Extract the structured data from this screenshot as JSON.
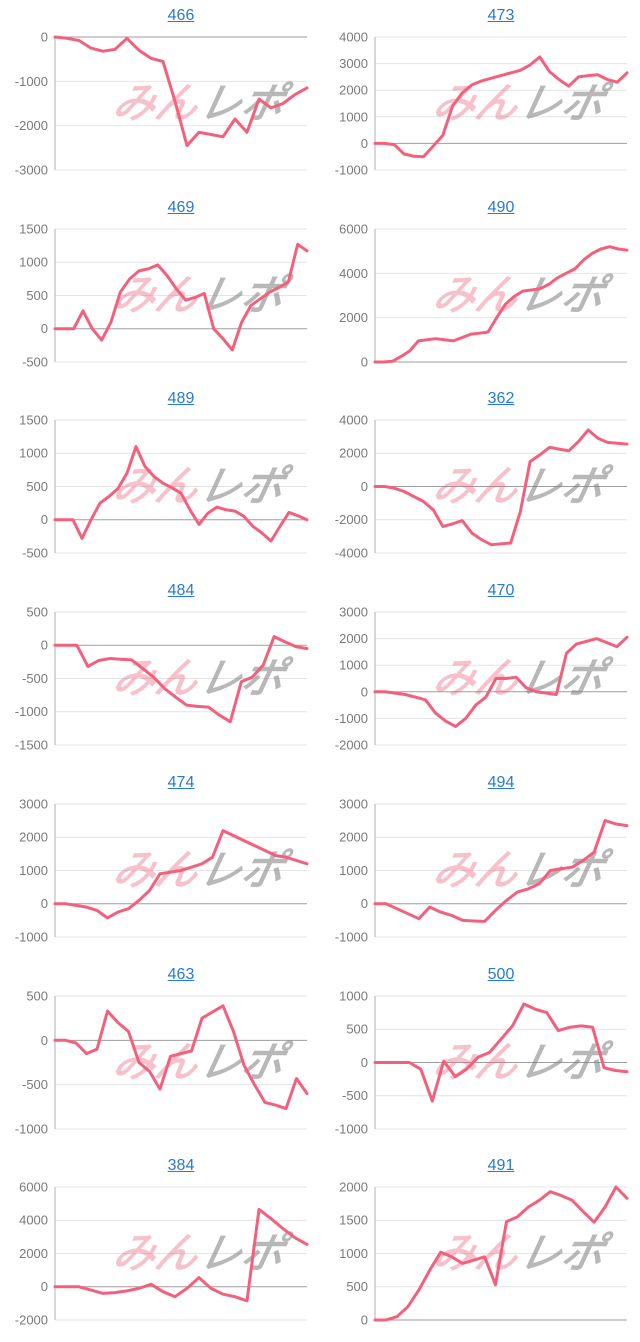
{
  "watermark": {
    "pink_text": "みん",
    "gray_text": "レポ"
  },
  "colors": {
    "line": "#f4607c",
    "title_link": "#2779d8",
    "grid_line": "#e4e4e4",
    "zero_line": "#9e9e9e",
    "axis_line": "#b0b0b0",
    "tick_label": "#7a7a7a",
    "watermark_pink": "rgba(233,100,125,0.40)",
    "watermark_gray": "rgba(125,125,125,0.55)"
  },
  "chart_data": [
    {
      "type": "line",
      "title": "466",
      "ylim": [
        -3000,
        0
      ],
      "ytick_step": 1000,
      "values": [
        0,
        -30,
        -80,
        -250,
        -320,
        -280,
        -30,
        -300,
        -480,
        -550,
        -1450,
        -2450,
        -2150,
        -2200,
        -2250,
        -1850,
        -2150,
        -1400,
        -1600,
        -1500,
        -1300,
        -1150
      ]
    },
    {
      "type": "line",
      "title": "473",
      "ylim": [
        -1000,
        4000
      ],
      "ytick_step": 1000,
      "values": [
        0,
        0,
        -50,
        -400,
        -480,
        -500,
        -100,
        300,
        1400,
        1900,
        2200,
        2350,
        2450,
        2550,
        2650,
        2750,
        2950,
        3250,
        2700,
        2400,
        2150,
        2500,
        2550,
        2580,
        2400,
        2300,
        2650
      ]
    },
    {
      "type": "line",
      "title": "469",
      "ylim": [
        -500,
        1500
      ],
      "ytick_step": 500,
      "values": [
        0,
        0,
        0,
        270,
        0,
        -170,
        100,
        550,
        750,
        870,
        900,
        960,
        800,
        600,
        430,
        470,
        530,
        0,
        -150,
        -320,
        100,
        350,
        450,
        550,
        620,
        700,
        1270,
        1170
      ]
    },
    {
      "type": "line",
      "title": "490",
      "ylim": [
        0,
        6000
      ],
      "ytick_step": 2000,
      "values": [
        0,
        0,
        30,
        250,
        500,
        950,
        1000,
        1050,
        1000,
        950,
        1100,
        1250,
        1300,
        1350,
        2000,
        2600,
        2950,
        3200,
        3250,
        3300,
        3500,
        3800,
        4000,
        4200,
        4600,
        4900,
        5100,
        5200,
        5100,
        5050
      ]
    },
    {
      "type": "line",
      "title": "489",
      "ylim": [
        -500,
        1500
      ],
      "ytick_step": 500,
      "values": [
        0,
        0,
        0,
        -280,
        0,
        250,
        350,
        470,
        700,
        1100,
        800,
        650,
        550,
        480,
        400,
        150,
        -70,
        100,
        190,
        150,
        130,
        50,
        -100,
        -200,
        -320,
        -100,
        110,
        60,
        0
      ]
    },
    {
      "type": "line",
      "title": "362",
      "ylim": [
        -4000,
        4000
      ],
      "ytick_step": 2000,
      "values": [
        0,
        0,
        -100,
        -300,
        -600,
        -900,
        -1400,
        -2400,
        -2250,
        -2050,
        -2800,
        -3200,
        -3500,
        -3450,
        -3400,
        -1500,
        1500,
        1900,
        2350,
        2250,
        2150,
        2700,
        3400,
        2900,
        2650,
        2600,
        2550
      ]
    },
    {
      "type": "line",
      "title": "484",
      "ylim": [
        -1500,
        500
      ],
      "ytick_step": 500,
      "values": [
        0,
        0,
        0,
        -320,
        -230,
        -200,
        -210,
        -220,
        -350,
        -480,
        -650,
        -780,
        -900,
        -920,
        -930,
        -1050,
        -1150,
        -550,
        -480,
        -300,
        130,
        50,
        -20,
        -50
      ]
    },
    {
      "type": "line",
      "title": "470",
      "ylim": [
        -2000,
        3000
      ],
      "ytick_step": 1000,
      "values": [
        0,
        0,
        -50,
        -100,
        -200,
        -300,
        -800,
        -1100,
        -1300,
        -1000,
        -500,
        -200,
        500,
        500,
        550,
        150,
        0,
        -50,
        -100,
        1450,
        1800,
        1900,
        2000,
        1850,
        1700,
        2050
      ]
    },
    {
      "type": "line",
      "title": "474",
      "ylim": [
        -1000,
        3000
      ],
      "ytick_step": 1000,
      "values": [
        0,
        0,
        -50,
        -100,
        -200,
        -430,
        -250,
        -150,
        100,
        400,
        900,
        950,
        1000,
        1100,
        1200,
        1400,
        2200,
        2050,
        1900,
        1750,
        1600,
        1450,
        1400,
        1300,
        1200
      ]
    },
    {
      "type": "line",
      "title": "494",
      "ylim": [
        -1000,
        3000
      ],
      "ytick_step": 1000,
      "values": [
        0,
        0,
        -150,
        -300,
        -450,
        -100,
        -250,
        -350,
        -500,
        -520,
        -530,
        -200,
        100,
        350,
        450,
        600,
        1000,
        1050,
        1100,
        1300,
        1550,
        2500,
        2400,
        2350
      ]
    },
    {
      "type": "line",
      "title": "463",
      "ylim": [
        -1000,
        500
      ],
      "ytick_step": 500,
      "values": [
        0,
        0,
        -30,
        -150,
        -100,
        330,
        200,
        100,
        -250,
        -350,
        -550,
        -180,
        -150,
        -120,
        250,
        320,
        390,
        100,
        -280,
        -500,
        -700,
        -730,
        -770,
        -430,
        -600
      ]
    },
    {
      "type": "line",
      "title": "500",
      "ylim": [
        -1000,
        1000
      ],
      "ytick_step": 500,
      "values": [
        0,
        0,
        0,
        0,
        -100,
        -580,
        20,
        -210,
        -100,
        80,
        150,
        350,
        550,
        880,
        800,
        750,
        480,
        530,
        550,
        530,
        -80,
        -120,
        -140
      ]
    },
    {
      "type": "line",
      "title": "384",
      "ylim": [
        -2000,
        6000
      ],
      "ytick_step": 2000,
      "values": [
        0,
        0,
        0,
        -200,
        -400,
        -350,
        -250,
        -100,
        150,
        -300,
        -600,
        -100,
        550,
        -100,
        -450,
        -600,
        -850,
        4650,
        4100,
        3500,
        2950,
        2550
      ]
    },
    {
      "type": "line",
      "title": "491",
      "ylim": [
        0,
        2000
      ],
      "ytick_step": 500,
      "values": [
        0,
        0,
        50,
        200,
        450,
        750,
        1020,
        950,
        850,
        900,
        950,
        530,
        1480,
        1550,
        1700,
        1800,
        1930,
        1870,
        1800,
        1630,
        1470,
        1700,
        2000,
        1830
      ]
    }
  ]
}
